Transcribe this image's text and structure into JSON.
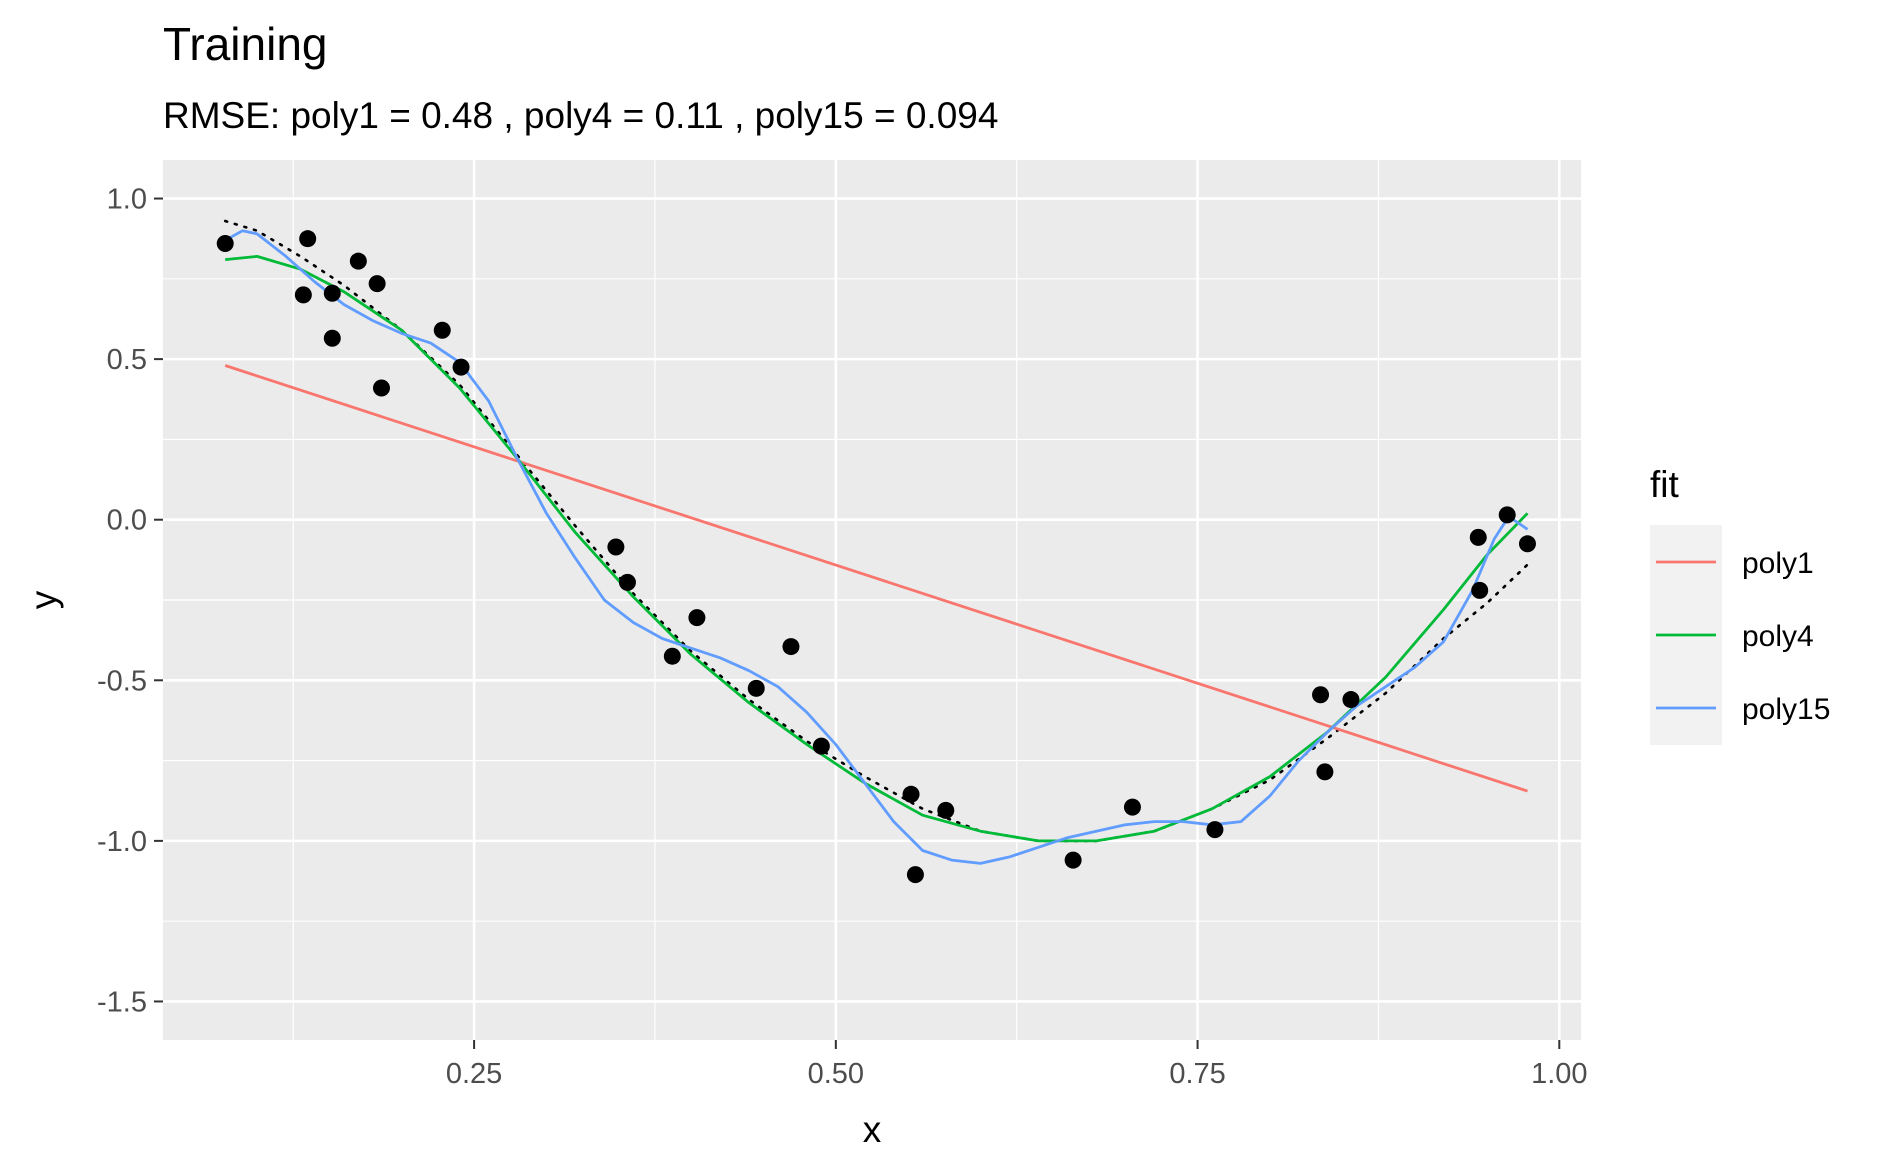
{
  "chart_data": {
    "type": "scatter",
    "title": "Training",
    "subtitle": "RMSE: poly1 = 0.48 , poly4 = 0.11 , poly15 = 0.094",
    "xlabel": "x",
    "ylabel": "y",
    "xlim": [
      0.035,
      1.015
    ],
    "ylim": [
      -1.62,
      1.12
    ],
    "x_ticks": [
      "0.25",
      "0.50",
      "0.75",
      "1.00"
    ],
    "x_tick_values": [
      0.25,
      0.5,
      0.75,
      1.0
    ],
    "y_ticks": [
      "-1.5",
      "-1.0",
      "-0.5",
      "0.0",
      "0.5",
      "1.0"
    ],
    "y_tick_values": [
      -1.5,
      -1.0,
      -0.5,
      0.0,
      0.5,
      1.0
    ],
    "grid": true,
    "legend": {
      "title": "fit",
      "position": "right"
    },
    "points": [
      [
        0.078,
        0.86
      ],
      [
        0.132,
        0.7
      ],
      [
        0.135,
        0.875
      ],
      [
        0.152,
        0.565
      ],
      [
        0.152,
        0.705
      ],
      [
        0.17,
        0.805
      ],
      [
        0.183,
        0.735
      ],
      [
        0.186,
        0.41
      ],
      [
        0.228,
        0.59
      ],
      [
        0.241,
        0.475
      ],
      [
        0.348,
        -0.085
      ],
      [
        0.356,
        -0.195
      ],
      [
        0.387,
        -0.425
      ],
      [
        0.404,
        -0.305
      ],
      [
        0.445,
        -0.525
      ],
      [
        0.469,
        -0.395
      ],
      [
        0.49,
        -0.705
      ],
      [
        0.552,
        -0.855
      ],
      [
        0.555,
        -1.105
      ],
      [
        0.576,
        -0.905
      ],
      [
        0.664,
        -1.06
      ],
      [
        0.705,
        -0.895
      ],
      [
        0.762,
        -0.965
      ],
      [
        0.835,
        -0.545
      ],
      [
        0.838,
        -0.785
      ],
      [
        0.856,
        -0.56
      ],
      [
        0.944,
        -0.055
      ],
      [
        0.945,
        -0.22
      ],
      [
        0.964,
        0.015
      ],
      [
        0.978,
        -0.075
      ]
    ],
    "true_curve": {
      "style": "dotted",
      "color": "#000000",
      "x": [
        0.078,
        0.1,
        0.13,
        0.16,
        0.2,
        0.24,
        0.28,
        0.32,
        0.36,
        0.4,
        0.44,
        0.48,
        0.52,
        0.56,
        0.6,
        0.64,
        0.68,
        0.72,
        0.76,
        0.8,
        0.84,
        0.88,
        0.92,
        0.95,
        0.978
      ],
      "y": [
        0.93,
        0.9,
        0.82,
        0.73,
        0.59,
        0.42,
        0.2,
        -0.02,
        -0.23,
        -0.41,
        -0.56,
        -0.69,
        -0.8,
        -0.9,
        -0.97,
        -1.0,
        -1.0,
        -0.97,
        -0.9,
        -0.81,
        -0.68,
        -0.54,
        -0.37,
        -0.26,
        -0.14
      ]
    },
    "series": [
      {
        "name": "poly1",
        "color": "#F8766D",
        "x": [
          0.078,
          0.978
        ],
        "y": [
          0.48,
          -0.845
        ]
      },
      {
        "name": "poly4",
        "color": "#00BA38",
        "x": [
          0.078,
          0.1,
          0.13,
          0.16,
          0.2,
          0.24,
          0.28,
          0.32,
          0.36,
          0.4,
          0.44,
          0.48,
          0.52,
          0.56,
          0.6,
          0.64,
          0.68,
          0.72,
          0.76,
          0.8,
          0.84,
          0.88,
          0.92,
          0.95,
          0.978
        ],
        "y": [
          0.81,
          0.82,
          0.78,
          0.71,
          0.59,
          0.41,
          0.19,
          -0.04,
          -0.24,
          -0.42,
          -0.57,
          -0.7,
          -0.82,
          -0.92,
          -0.97,
          -1.0,
          -1.0,
          -0.97,
          -0.9,
          -0.8,
          -0.66,
          -0.49,
          -0.28,
          -0.11,
          0.02
        ]
      },
      {
        "name": "poly15",
        "color": "#619CFF",
        "x": [
          0.078,
          0.09,
          0.1,
          0.12,
          0.14,
          0.16,
          0.18,
          0.2,
          0.22,
          0.24,
          0.26,
          0.28,
          0.3,
          0.32,
          0.34,
          0.36,
          0.38,
          0.4,
          0.42,
          0.44,
          0.46,
          0.48,
          0.5,
          0.52,
          0.54,
          0.56,
          0.58,
          0.6,
          0.62,
          0.64,
          0.66,
          0.68,
          0.7,
          0.72,
          0.74,
          0.76,
          0.78,
          0.8,
          0.82,
          0.84,
          0.86,
          0.88,
          0.9,
          0.92,
          0.94,
          0.955,
          0.965,
          0.978
        ],
        "y": [
          0.87,
          0.9,
          0.89,
          0.82,
          0.74,
          0.67,
          0.62,
          0.58,
          0.55,
          0.49,
          0.37,
          0.19,
          0.02,
          -0.12,
          -0.25,
          -0.32,
          -0.37,
          -0.4,
          -0.43,
          -0.47,
          -0.52,
          -0.6,
          -0.7,
          -0.82,
          -0.94,
          -1.03,
          -1.06,
          -1.07,
          -1.05,
          -1.02,
          -0.99,
          -0.97,
          -0.95,
          -0.94,
          -0.94,
          -0.95,
          -0.94,
          -0.86,
          -0.75,
          -0.66,
          -0.58,
          -0.52,
          -0.46,
          -0.38,
          -0.22,
          -0.06,
          0.01,
          -0.03
        ]
      }
    ]
  }
}
